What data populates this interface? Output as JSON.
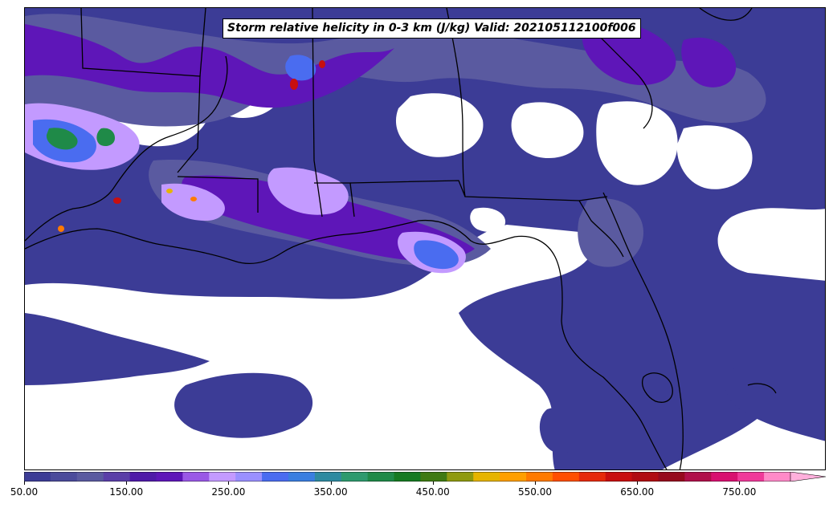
{
  "title": "Storm relative helicity in 0-3 km (J/kg) Valid: 202105112100f006",
  "map": {
    "region": "Southeastern United States and Gulf of Mexico",
    "field": "storm relative helicity 0-3 km",
    "background_color": "#ffffff",
    "boundary_color": "#000000"
  },
  "colorbar": {
    "min": 50,
    "max": 800,
    "step": 25,
    "extend": "max",
    "tick_labels": [
      "50.00",
      "150.00",
      "250.00",
      "350.00",
      "450.00",
      "550.00",
      "650.00",
      "750.00"
    ],
    "tick_values": [
      50,
      150,
      250,
      350,
      450,
      550,
      650,
      750
    ],
    "colors": [
      "#3c3c96",
      "#4b4b9b",
      "#5a5aa0",
      "#5a3fa8",
      "#4f1aa8",
      "#5e16b8",
      "#9a58e6",
      "#c39aff",
      "#9a90ff",
      "#4a6cf0",
      "#3a7ee0",
      "#2f8aa0",
      "#2e9a6e",
      "#1f8a48",
      "#167a22",
      "#3f7a12",
      "#8f9a10",
      "#e6b400",
      "#ff9f00",
      "#ff7a00",
      "#ff4f00",
      "#e62a0a",
      "#c80f0f",
      "#b00c12",
      "#960a1e",
      "#b0104a",
      "#d81070",
      "#f03a9a",
      "#ff8ac8",
      "#ffb0dc"
    ]
  }
}
